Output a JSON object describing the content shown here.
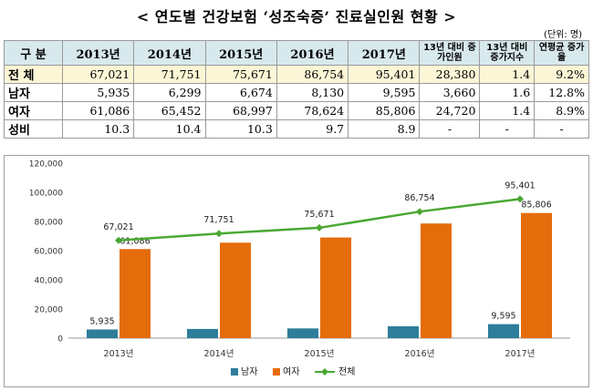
{
  "title": "< 연도별 건강보험 ‘성조숙증’ 진료실인원 현황 >",
  "unit": "(단위: 명)",
  "table": {
    "headers": [
      "구 분",
      "2013년",
      "2014년",
      "2015년",
      "2016년",
      "2017년",
      "13년 대비 증가인원",
      "13년 대비 증가지수",
      "연평균 증가율"
    ],
    "rows": [
      {
        "label": "전 체",
        "cells": [
          "67,021",
          "71,751",
          "75,671",
          "86,754",
          "95,401",
          "28,380",
          "1.4",
          "9.2%"
        ]
      },
      {
        "label": "남자",
        "cells": [
          "5,935",
          "6,299",
          "6,674",
          "8,130",
          "9,595",
          "3,660",
          "1.6",
          "12.8%"
        ]
      },
      {
        "label": "여자",
        "cells": [
          "61,086",
          "65,452",
          "68,997",
          "78,624",
          "85,806",
          "24,720",
          "1.4",
          "8.9%"
        ]
      },
      {
        "label": "성비",
        "cells": [
          "10.3",
          "10.4",
          "10.3",
          "9.7",
          "8.9",
          "-",
          "-",
          "-"
        ]
      }
    ]
  },
  "chart_data": {
    "type": "bar",
    "categories": [
      "2013년",
      "2014년",
      "2015년",
      "2016년",
      "2017년"
    ],
    "series": [
      {
        "name": "남자",
        "type": "bar",
        "color": "#2e7d9a",
        "values": [
          5935,
          6299,
          6674,
          8130,
          9595
        ],
        "labels": [
          "5,935",
          "",
          "",
          "",
          "9,595"
        ]
      },
      {
        "name": "여자",
        "type": "bar",
        "color": "#e46c0a",
        "values": [
          61086,
          65452,
          68997,
          78624,
          85806
        ],
        "labels": [
          "61,086",
          "",
          "",
          "",
          "85,806"
        ]
      },
      {
        "name": "전체",
        "type": "line",
        "color": "#4aa832",
        "values": [
          67021,
          71751,
          75671,
          86754,
          95401
        ],
        "labels": [
          "67,021",
          "71,751",
          "75,671",
          "86,754",
          "95,401"
        ]
      }
    ],
    "ylim": [
      0,
      120000
    ],
    "yticks": [
      0,
      20000,
      40000,
      60000,
      80000,
      100000,
      120000
    ],
    "ytick_labels": [
      "0",
      "20,000",
      "40,000",
      "60,000",
      "80,000",
      "100,000",
      "120,000"
    ],
    "grid": false,
    "legend": "bottom-center"
  }
}
